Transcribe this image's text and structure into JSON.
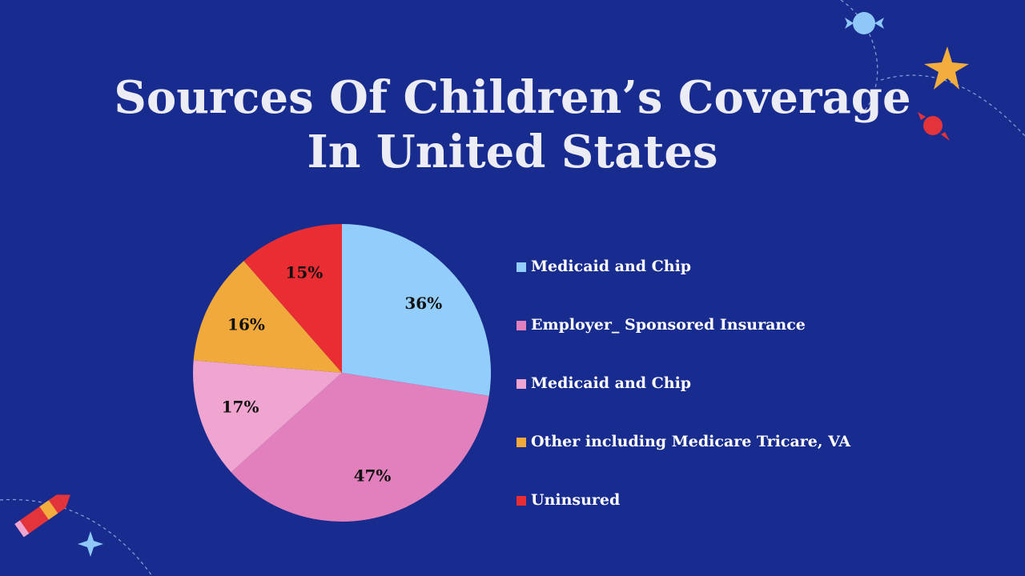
{
  "title": {
    "line1": "Sources Of Children’s Coverage",
    "line2": "In United States"
  },
  "chart_data": {
    "type": "pie",
    "slices": [
      {
        "name": "Medicaid and Chip",
        "value": 36,
        "label": "36%",
        "color": "#93cdfb"
      },
      {
        "name": "Employer_ Sponsored Insurance",
        "value": 47,
        "label": "47%",
        "color": "#e27fbd"
      },
      {
        "name": "Medicaid and Chip",
        "value": 17,
        "label": "17%",
        "color": "#f0a5d1"
      },
      {
        "name": "Other including Medicare Tricare, VA",
        "value": 16,
        "label": "16%",
        "color": "#f1a93c"
      },
      {
        "name": "Uninsured",
        "value": 15,
        "label": "15%",
        "color": "#ea2d33"
      }
    ],
    "start_angle": "12 o'clock",
    "direction": "clockwise",
    "legend_placement": "right"
  },
  "colors": {
    "background": "#182b8e",
    "title": "#ececf4",
    "legend_text": "#ffffff"
  },
  "decorations": [
    "candy-icon",
    "star-icon",
    "candy-icon",
    "crayon-icon",
    "star-icon"
  ]
}
